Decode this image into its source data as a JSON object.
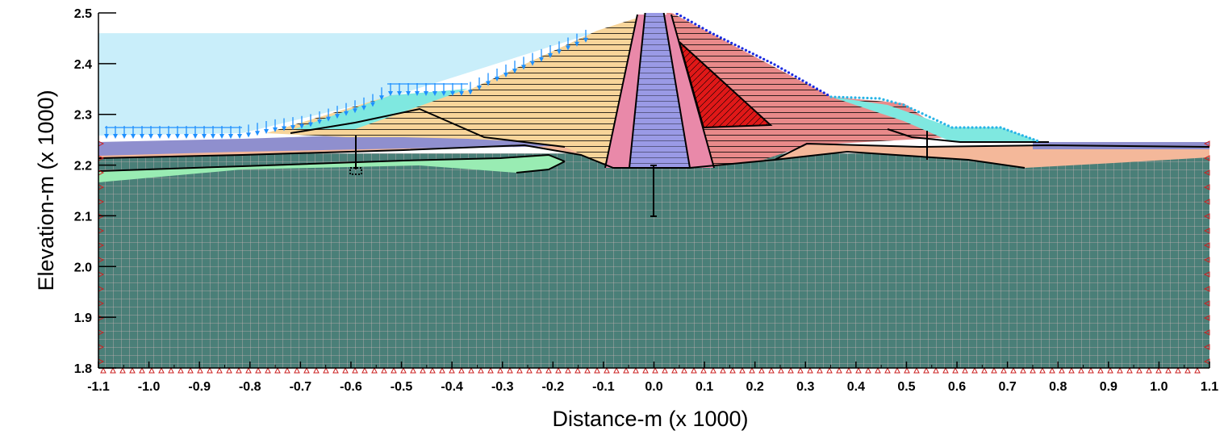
{
  "figure": {
    "xlabel": "Distance-m (x  1000)",
    "ylabel": "Elevation-m (x  1000)",
    "x_ticks": [
      "-1.1",
      "-1.0",
      "-0.9",
      "-0.8",
      "-0.7",
      "-0.6",
      "-0.5",
      "-0.4",
      "-0.3",
      "-0.2",
      "-0.1",
      "0.0",
      "0.1",
      "0.2",
      "0.3",
      "0.4",
      "0.5",
      "0.6",
      "0.7",
      "0.8",
      "0.9",
      "1.0",
      "1.1"
    ],
    "y_ticks": [
      "1.8",
      "1.9",
      "2.0",
      "2.1",
      "2.2",
      "2.3",
      "2.4",
      "2.5"
    ],
    "x_range": [
      -1.1,
      1.1
    ],
    "y_range": [
      1.8,
      2.5
    ],
    "reservoir_level": 2.46
  },
  "colors": {
    "water": "#c9eefa",
    "foundation": "#4a7f78",
    "mesh_line": "#c8b4b4",
    "overburden": "#f4b89a",
    "alluvium_green": "#99ecb3",
    "upstream_fill": "#8f8fce",
    "upstream_shell": "#f8d59a",
    "core": "#9a9ae6",
    "filter": "#e989a9",
    "downstream_shell": "#e98a8a",
    "downstream_zone": "#e01818",
    "berm": "#7fe8e0",
    "load_arrows": "#1e90ff",
    "crest_nodes": "#1a2ae0",
    "boundary": "#cc2020"
  }
}
